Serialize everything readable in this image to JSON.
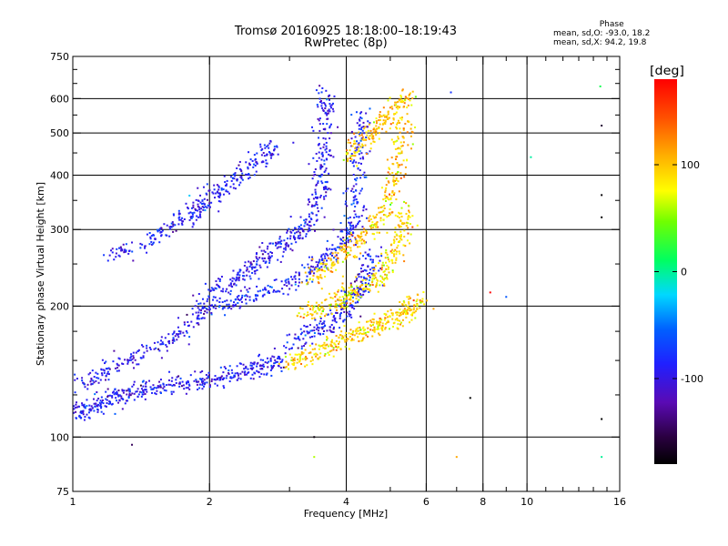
{
  "chart_data": {
    "type": "scatter",
    "title": "Tromsø 20160925 18:18:00–18:19:43",
    "subtitle": "RwPretec (8p)",
    "xlabel": "Frequency [MHz]",
    "ylabel": "Stationary phase Virtual Height [km]",
    "x_scale": "log",
    "y_scale": "log",
    "xlim": [
      1,
      16
    ],
    "ylim": [
      75,
      750
    ],
    "x_ticks": [
      1,
      2,
      4,
      6,
      8,
      10,
      16
    ],
    "x_tick_labels": [
      "1",
      "2",
      "4",
      "6",
      "8",
      "10",
      "16"
    ],
    "x_minor_ticks": [
      3,
      5,
      7,
      9,
      11,
      12,
      13,
      14,
      15
    ],
    "x_grid_lines": [
      2,
      4,
      6,
      8,
      10
    ],
    "y_ticks": [
      75,
      100,
      200,
      300,
      400,
      500,
      600,
      750
    ],
    "y_tick_labels": [
      "75",
      "100",
      "200",
      "300",
      "400",
      "500",
      "600",
      "750"
    ],
    "y_minor_ticks": [
      125,
      150,
      175,
      250,
      350,
      450,
      550,
      650,
      700
    ],
    "y_grid_lines": [
      100,
      200,
      300,
      400,
      500,
      600
    ],
    "grid": true,
    "color_quantity": "phase",
    "colorbar": {
      "label": "[deg]",
      "range": [
        -180,
        180
      ],
      "ticks": [
        100,
        0,
        -100
      ],
      "tick_labels": [
        "100",
        "0",
        "-100"
      ],
      "colormap": "rainbow: black-purple-blue-cyan-green-yellow-orange-red"
    },
    "stats": {
      "header": "Phase",
      "line_o": "mean, sd,O: -93.0, 18.2",
      "line_x": "mean, sd,X:  94.2, 19.8"
    },
    "traces": [
      {
        "mode": "O",
        "phase_mean": -93,
        "phase_sd": 18,
        "points": [
          [
            1.0,
            113
          ],
          [
            1.05,
            114
          ],
          [
            1.1,
            118
          ],
          [
            1.2,
            122
          ],
          [
            1.3,
            126
          ],
          [
            1.4,
            128
          ],
          [
            1.5,
            130
          ],
          [
            1.7,
            132
          ],
          [
            1.9,
            134
          ],
          [
            2.1,
            137
          ],
          [
            2.3,
            140
          ],
          [
            2.5,
            143
          ],
          [
            2.7,
            146
          ],
          [
            2.9,
            152
          ]
        ]
      },
      {
        "mode": "O",
        "phase_mean": -95,
        "phase_sd": 18,
        "points": [
          [
            1.0,
            130
          ],
          [
            1.15,
            140
          ],
          [
            1.3,
            150
          ],
          [
            1.5,
            160
          ],
          [
            1.7,
            172
          ],
          [
            1.9,
            190
          ],
          [
            2.0,
            210
          ],
          [
            2.2,
            225
          ],
          [
            2.4,
            240
          ],
          [
            2.6,
            255
          ],
          [
            2.8,
            270
          ],
          [
            3.0,
            285
          ],
          [
            3.2,
            300
          ],
          [
            3.4,
            330
          ],
          [
            3.5,
            370
          ],
          [
            3.55,
            420
          ],
          [
            3.6,
            480
          ],
          [
            3.62,
            560
          ],
          [
            3.6,
            630
          ]
        ]
      },
      {
        "mode": "O",
        "phase_mean": -90,
        "phase_sd": 18,
        "points": [
          [
            1.2,
            260
          ],
          [
            1.4,
            275
          ],
          [
            1.6,
            300
          ],
          [
            1.8,
            320
          ],
          [
            1.9,
            340
          ],
          [
            2.0,
            355
          ],
          [
            2.2,
            380
          ],
          [
            2.4,
            410
          ],
          [
            2.6,
            440
          ],
          [
            2.8,
            470
          ]
        ]
      },
      {
        "mode": "O",
        "phase_mean": -85,
        "phase_sd": 18,
        "points": [
          [
            2.0,
            195
          ],
          [
            2.3,
            205
          ],
          [
            2.6,
            215
          ],
          [
            3.0,
            225
          ],
          [
            3.3,
            240
          ],
          [
            3.6,
            258
          ],
          [
            3.9,
            275
          ],
          [
            4.1,
            300
          ],
          [
            4.2,
            340
          ],
          [
            4.25,
            400
          ],
          [
            4.3,
            480
          ],
          [
            4.35,
            560
          ]
        ]
      },
      {
        "mode": "O",
        "phase_mean": -92,
        "phase_sd": 18,
        "points": [
          [
            3.0,
            165
          ],
          [
            3.3,
            172
          ],
          [
            3.6,
            180
          ],
          [
            3.9,
            192
          ],
          [
            4.1,
            205
          ],
          [
            4.3,
            220
          ],
          [
            4.45,
            240
          ],
          [
            4.55,
            270
          ]
        ]
      },
      {
        "mode": "X",
        "phase_mean": 94,
        "phase_sd": 20,
        "points": [
          [
            2.9,
            148
          ],
          [
            3.2,
            152
          ],
          [
            3.5,
            158
          ],
          [
            3.8,
            164
          ],
          [
            4.1,
            170
          ],
          [
            4.4,
            175
          ],
          [
            4.7,
            180
          ],
          [
            5.0,
            186
          ],
          [
            5.3,
            192
          ],
          [
            5.6,
            200
          ],
          [
            5.9,
            208
          ]
        ]
      },
      {
        "mode": "X",
        "phase_mean": 90,
        "phase_sd": 20,
        "points": [
          [
            3.2,
            190
          ],
          [
            3.5,
            198
          ],
          [
            3.8,
            205
          ],
          [
            4.1,
            212
          ],
          [
            4.4,
            220
          ],
          [
            4.7,
            232
          ],
          [
            5.0,
            250
          ],
          [
            5.2,
            275
          ],
          [
            5.35,
            305
          ],
          [
            5.45,
            340
          ]
        ]
      },
      {
        "mode": "X",
        "phase_mean": 96,
        "phase_sd": 20,
        "points": [
          [
            3.3,
            230
          ],
          [
            3.6,
            245
          ],
          [
            3.9,
            260
          ],
          [
            4.2,
            280
          ],
          [
            4.5,
            300
          ],
          [
            4.8,
            330
          ],
          [
            5.0,
            370
          ],
          [
            5.15,
            420
          ],
          [
            5.3,
            480
          ],
          [
            5.4,
            540
          ]
        ]
      },
      {
        "mode": "X",
        "phase_mean": 100,
        "phase_sd": 20,
        "points": [
          [
            4.0,
            440
          ],
          [
            4.3,
            470
          ],
          [
            4.6,
            500
          ],
          [
            4.9,
            540
          ],
          [
            5.2,
            580
          ],
          [
            5.5,
            610
          ]
        ]
      },
      {
        "mode": "noise",
        "phase_mean": -30,
        "phase_sd": 110,
        "points": [
          [
            1.35,
            96
          ],
          [
            6.8,
            620
          ],
          [
            7.0,
            90
          ],
          [
            7.5,
            123
          ],
          [
            9.0,
            210
          ],
          [
            10.2,
            440
          ],
          [
            14.5,
            640
          ],
          [
            14.6,
            520
          ],
          [
            14.6,
            360
          ],
          [
            14.6,
            320
          ],
          [
            14.6,
            110
          ],
          [
            14.6,
            90
          ],
          [
            3.4,
            100
          ],
          [
            3.4,
            90
          ],
          [
            8.3,
            215
          ]
        ]
      }
    ]
  }
}
